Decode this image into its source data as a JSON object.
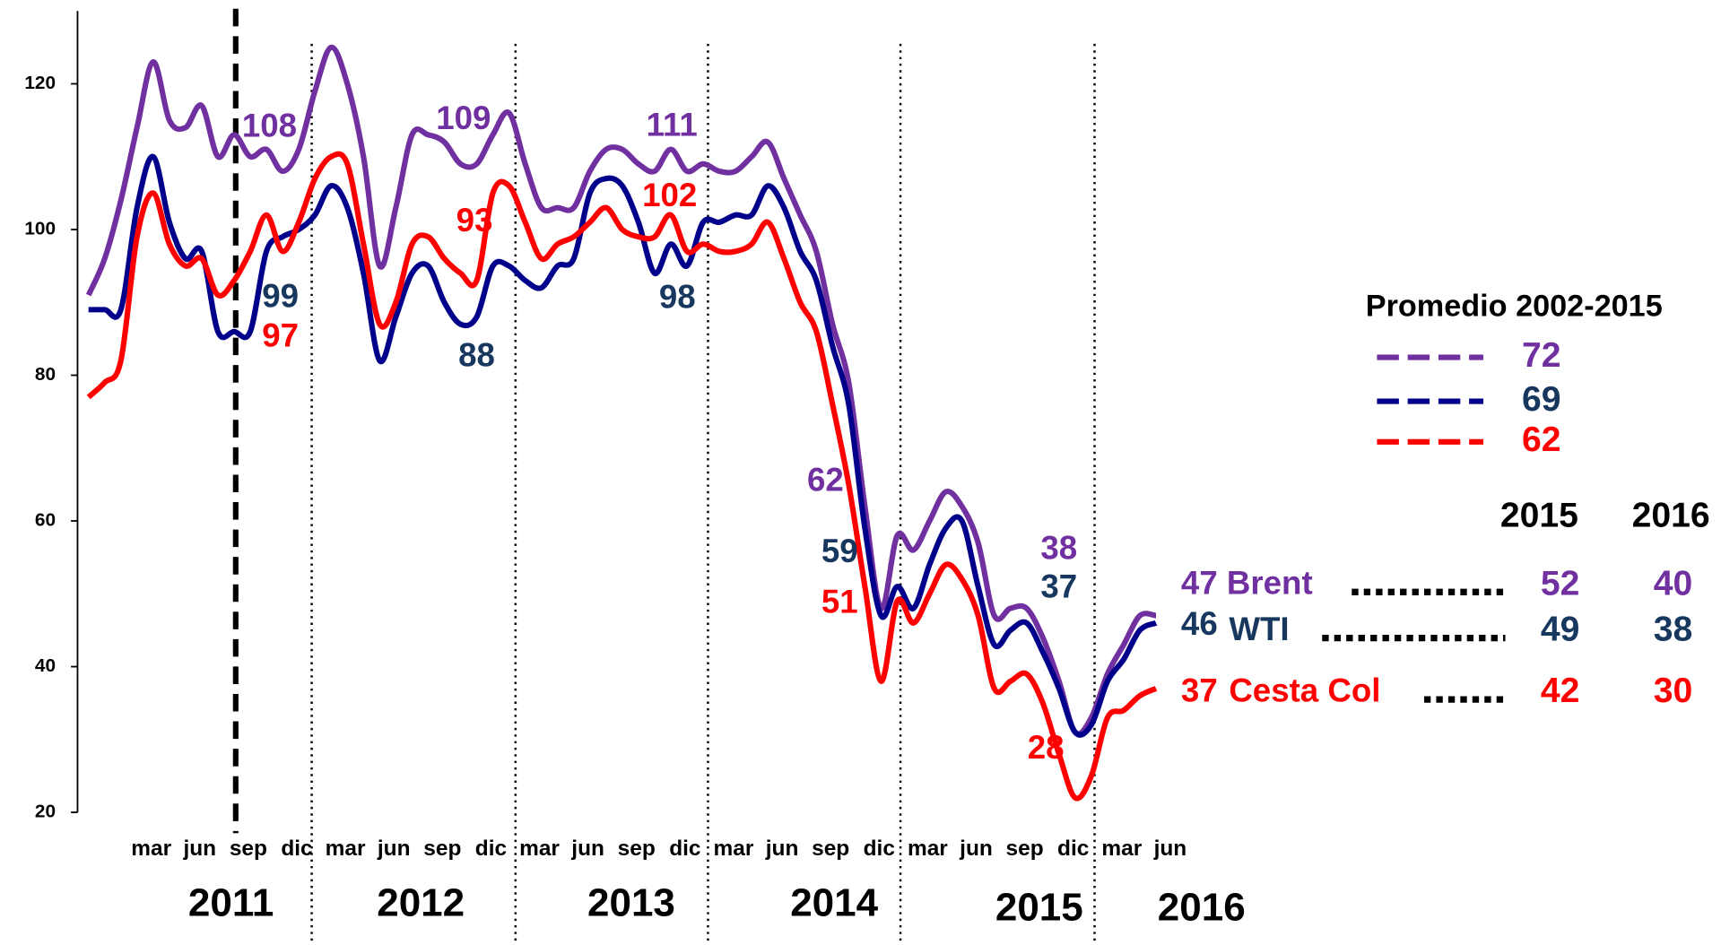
{
  "chart_data": {
    "type": "line",
    "categories": [
      null,
      null,
      null,
      "mar",
      null,
      null,
      "jun",
      null,
      null,
      "sep",
      null,
      null,
      "dic",
      null,
      null,
      "mar",
      null,
      null,
      "jun",
      null,
      null,
      "sep",
      null,
      null,
      "dic",
      null,
      null,
      "mar",
      null,
      null,
      "jun",
      null,
      null,
      "sep",
      null,
      null,
      "dic",
      null,
      null,
      "mar",
      null,
      null,
      "jun",
      null,
      null,
      "sep",
      null,
      null,
      "dic",
      null,
      null,
      "mar",
      null,
      null,
      "jun",
      null,
      null,
      "sep",
      null,
      null,
      "dic",
      null,
      null,
      "mar",
      null,
      null,
      "jun"
    ],
    "years": [
      "2011",
      "2012",
      "2013",
      "2014",
      "2015",
      "2016"
    ],
    "ylim": [
      20,
      130
    ],
    "yticks": [
      20,
      40,
      60,
      80,
      100,
      120
    ],
    "series": [
      {
        "name": "Brent",
        "color": "#7030a0",
        "label_color": "#7030a0",
        "values": [
          91,
          96,
          104,
          114,
          123,
          115,
          114,
          117,
          110,
          113,
          110,
          111,
          108,
          111,
          119,
          125,
          120,
          110,
          95,
          103,
          113,
          113,
          112,
          109,
          109,
          113,
          116,
          109,
          103,
          103,
          103,
          108,
          111,
          111,
          109,
          108,
          111,
          108,
          109,
          108,
          108,
          110,
          112,
          107,
          102,
          97,
          87,
          79,
          62,
          48,
          58,
          56,
          60,
          64,
          62,
          57,
          47,
          48,
          48,
          44,
          38,
          31,
          33,
          39,
          43,
          47,
          47
        ],
        "average": 72,
        "annual": [
          52,
          40
        ]
      },
      {
        "name": "WTI",
        "color": "#00008b",
        "label_color": "#17375e",
        "values": [
          89,
          89,
          89,
          103,
          110,
          101,
          96,
          97,
          86,
          86,
          86,
          97,
          99,
          100,
          102,
          106,
          103,
          94,
          82,
          88,
          94,
          95,
          90,
          87,
          88,
          95,
          95,
          93,
          92,
          95,
          96,
          105,
          107,
          106,
          101,
          94,
          98,
          95,
          101,
          101,
          102,
          102,
          106,
          103,
          97,
          93,
          84,
          76,
          59,
          47,
          51,
          48,
          54,
          59,
          60,
          51,
          43,
          45,
          46,
          42,
          37,
          31,
          32,
          38,
          41,
          45,
          46
        ],
        "average": 69,
        "annual": [
          49,
          38
        ]
      },
      {
        "name": "Cesta Col",
        "color": "#ff0000",
        "label_color": "#ff0000",
        "values": [
          77,
          79,
          82,
          99,
          105,
          98,
          95,
          96,
          91,
          93,
          97,
          102,
          97,
          101,
          107,
          110,
          109,
          98,
          87,
          90,
          98,
          99,
          96,
          94,
          93,
          105,
          106,
          101,
          96,
          98,
          99,
          101,
          103,
          100,
          99,
          99,
          102,
          97,
          98,
          97,
          97,
          98,
          101,
          96,
          90,
          86,
          76,
          65,
          51,
          38,
          49,
          46,
          50,
          54,
          52,
          47,
          37,
          38,
          39,
          35,
          28,
          22,
          25,
          33,
          34,
          36,
          37
        ],
        "average": 62,
        "annual": [
          42,
          30
        ]
      }
    ],
    "average_title": "Promedio 2002-2015",
    "annual_columns": [
      "2015",
      "2016"
    ]
  }
}
